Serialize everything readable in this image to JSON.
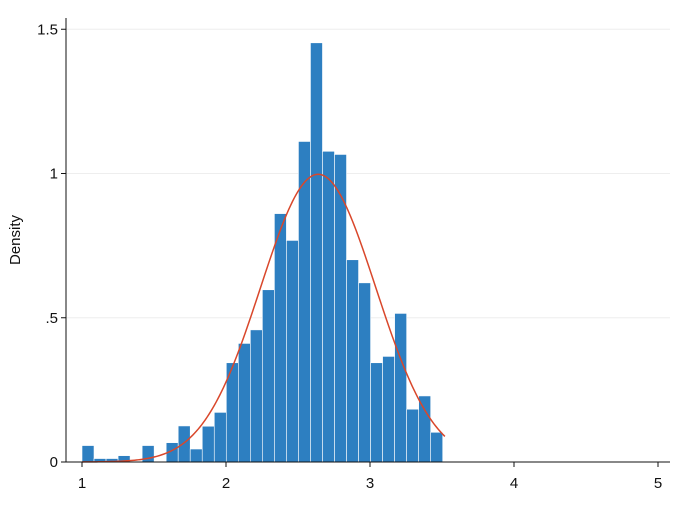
{
  "chart_data": {
    "type": "bar",
    "title": "",
    "xlabel": "",
    "ylabel": "Density",
    "xlim": [
      1,
      5
    ],
    "ylim": [
      0,
      1.5
    ],
    "grid": true,
    "xticks": [
      {
        "value": 1,
        "label": "1"
      },
      {
        "value": 2,
        "label": "2"
      },
      {
        "value": 3,
        "label": "3"
      },
      {
        "value": 4,
        "label": "4"
      },
      {
        "value": 5,
        "label": "5"
      }
    ],
    "yticks": [
      {
        "value": 0,
        "label": "0"
      },
      {
        "value": 0.5,
        "label": ".5"
      },
      {
        "value": 1,
        "label": "1"
      },
      {
        "value": 1.5,
        "label": "1.5"
      }
    ],
    "series": [
      {
        "type": "histogram",
        "color": "#2d7fc1",
        "edgecolor": "#ffffff",
        "bin_start": 1.0,
        "bin_width": 0.0835,
        "values": [
          0.057,
          0.012,
          0.012,
          0.022,
          0.0,
          0.057,
          0.0,
          0.067,
          0.125,
          0.045,
          0.124,
          0.172,
          0.344,
          0.411,
          0.458,
          0.597,
          0.861,
          0.768,
          1.111,
          1.453,
          1.077,
          1.066,
          0.701,
          0.621,
          0.344,
          0.366,
          0.515,
          0.183,
          0.229,
          0.103
        ]
      },
      {
        "type": "normal-density-curve",
        "color": "#d9472b",
        "mean": 2.64,
        "sd": 0.4,
        "x_range": [
          1.0,
          3.52
        ]
      }
    ]
  }
}
